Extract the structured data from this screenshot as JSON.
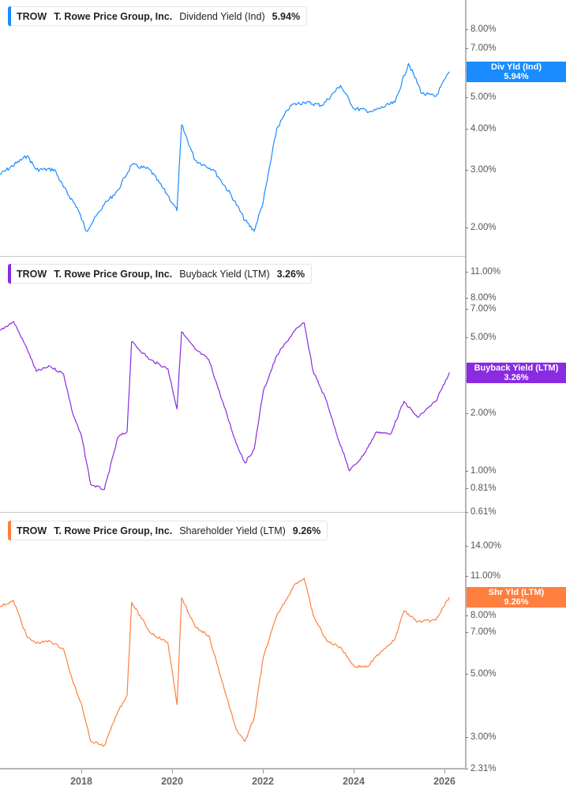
{
  "chart_data": [
    {
      "type": "line",
      "title": "TROW T. Rowe Price Group, Inc. Dividend Yield (Ind) 5.94%",
      "ticker": "TROW",
      "company": "T. Rowe Price Group, Inc.",
      "metric": "Dividend Yield (Ind)",
      "current_value": "5.94%",
      "badge_label": "Div Yld (Ind)",
      "color": "#1a8cff",
      "yscale": "log",
      "yticks": [
        "8.00%",
        "7.00%",
        "6.00%",
        "5.00%",
        "4.00%",
        "3.00%",
        "2.00%"
      ],
      "x": [
        2016.2,
        2016.8,
        2017.0,
        2017.4,
        2017.6,
        2017.9,
        2018.1,
        2018.5,
        2018.8,
        2019.1,
        2019.5,
        2019.9,
        2020.1,
        2020.2,
        2020.5,
        2020.9,
        2021.3,
        2021.6,
        2021.8,
        2022.0,
        2022.3,
        2022.6,
        2022.9,
        2023.3,
        2023.7,
        2024.0,
        2024.4,
        2024.9,
        2025.2,
        2025.5,
        2025.8,
        2026.1
      ],
      "values": [
        2.9,
        3.3,
        3.0,
        3.0,
        2.65,
        2.3,
        1.95,
        2.35,
        2.6,
        3.1,
        3.0,
        2.5,
        2.25,
        4.1,
        3.2,
        3.0,
        2.5,
        2.1,
        1.95,
        2.4,
        4.0,
        4.7,
        4.8,
        4.7,
        5.4,
        4.6,
        4.5,
        4.8,
        6.3,
        5.1,
        5.0,
        5.94
      ]
    },
    {
      "type": "line",
      "title": "TROW T. Rowe Price Group, Inc. Buyback Yield (LTM) 3.26%",
      "ticker": "TROW",
      "company": "T. Rowe Price Group, Inc.",
      "metric": "Buyback Yield (LTM)",
      "current_value": "3.26%",
      "badge_label": "Buyback Yield (LTM)",
      "color": "#8a2be2",
      "yscale": "log",
      "yticks": [
        "11.00%",
        "8.00%",
        "7.00%",
        "5.00%",
        "3.00%",
        "2.00%",
        "1.00%",
        "0.81%",
        "0.61%"
      ],
      "x": [
        2016.2,
        2016.5,
        2016.8,
        2017.0,
        2017.3,
        2017.6,
        2017.8,
        2018.0,
        2018.2,
        2018.5,
        2018.8,
        2019.0,
        2019.1,
        2019.5,
        2019.9,
        2020.1,
        2020.2,
        2020.5,
        2020.8,
        2021.4,
        2021.6,
        2021.8,
        2022.0,
        2022.3,
        2022.7,
        2022.9,
        2023.1,
        2023.4,
        2023.6,
        2023.9,
        2024.2,
        2024.5,
        2024.8,
        2025.1,
        2025.4,
        2025.8,
        2026.1
      ],
      "values": [
        5.4,
        6.0,
        4.3,
        3.3,
        3.5,
        3.2,
        2.0,
        1.5,
        0.85,
        0.8,
        1.5,
        1.6,
        4.7,
        3.8,
        3.4,
        2.1,
        5.3,
        4.3,
        3.8,
        1.4,
        1.1,
        1.3,
        2.6,
        4.0,
        5.4,
        5.9,
        3.3,
        2.3,
        1.6,
        1.0,
        1.2,
        1.6,
        1.55,
        2.3,
        1.9,
        2.3,
        3.26
      ]
    },
    {
      "type": "line",
      "title": "TROW T. Rowe Price Group, Inc. Shareholder Yield (LTM) 9.26%",
      "ticker": "TROW",
      "company": "T. Rowe Price Group, Inc.",
      "metric": "Shareholder Yield (LTM)",
      "current_value": "9.26%",
      "badge_label": "Shr Yld (LTM)",
      "color": "#ff7f3f",
      "yscale": "log",
      "yticks": [
        "14.00%",
        "11.00%",
        "8.00%",
        "7.00%",
        "5.00%",
        "3.00%",
        "2.31%"
      ],
      "x": [
        2016.2,
        2016.5,
        2016.8,
        2017.0,
        2017.3,
        2017.6,
        2017.8,
        2018.0,
        2018.2,
        2018.5,
        2018.8,
        2019.0,
        2019.1,
        2019.5,
        2019.9,
        2020.1,
        2020.2,
        2020.5,
        2020.8,
        2021.4,
        2021.6,
        2021.8,
        2022.0,
        2022.3,
        2022.7,
        2022.9,
        2023.1,
        2023.4,
        2023.7,
        2024.0,
        2024.3,
        2024.6,
        2024.9,
        2025.1,
        2025.4,
        2025.8,
        2026.1
      ],
      "values": [
        8.6,
        9.0,
        6.7,
        6.4,
        6.5,
        6.1,
        4.7,
        3.9,
        2.9,
        2.8,
        3.7,
        4.2,
        8.9,
        7.0,
        6.4,
        3.9,
        9.2,
        7.3,
        6.8,
        3.2,
        2.9,
        3.5,
        5.7,
        8.0,
        10.3,
        10.8,
        8.0,
        6.5,
        6.2,
        5.3,
        5.3,
        6.0,
        6.6,
        8.3,
        7.6,
        7.7,
        9.26
      ]
    }
  ],
  "x_axis": {
    "ticks": [
      "2018",
      "2020",
      "2022",
      "2024",
      "2026"
    ]
  },
  "panels": [
    {
      "legend": {
        "ticker": "TROW",
        "company": "T. Rowe Price Group, Inc.",
        "metric": "Dividend Yield (Ind)",
        "value": "5.94%"
      },
      "badge": {
        "label": "Div Yld (Ind)",
        "value": "5.94%"
      }
    },
    {
      "legend": {
        "ticker": "TROW",
        "company": "T. Rowe Price Group, Inc.",
        "metric": "Buyback Yield (LTM)",
        "value": "3.26%"
      },
      "badge": {
        "label": "Buyback Yield (LTM)",
        "value": "3.26%"
      }
    },
    {
      "legend": {
        "ticker": "TROW",
        "company": "T. Rowe Price Group, Inc.",
        "metric": "Shareholder Yield (LTM)",
        "value": "9.26%"
      },
      "badge": {
        "label": "Shr Yld (LTM)",
        "value": "9.26%"
      }
    }
  ],
  "colors": {
    "dividend": "#1a8cff",
    "buyback": "#8a2be2",
    "shareholder": "#ff7f3f",
    "axis": "#b5b5b5",
    "label": "#555555"
  }
}
